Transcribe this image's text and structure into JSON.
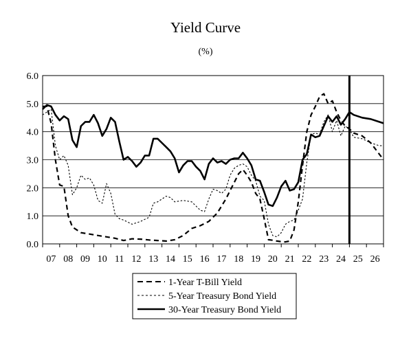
{
  "chart_data": {
    "type": "line",
    "title": "Yield Curve",
    "subtitle": "(%)",
    "xlabel": "",
    "ylabel": "",
    "xlim": [
      2006.75,
      2026.75
    ],
    "ylim": [
      0,
      6
    ],
    "y_ticks": [
      "0.0",
      "1.0",
      "2.0",
      "3.0",
      "4.0",
      "5.0",
      "6.0"
    ],
    "x_ticks": [
      "07",
      "08",
      "09",
      "10",
      "11",
      "12",
      "13",
      "14",
      "15",
      "16",
      "17",
      "18",
      "19",
      "20",
      "21",
      "22",
      "23",
      "24",
      "25",
      "26"
    ],
    "grid": "horizontal",
    "vertical_marker_x": 2024.75,
    "legend_position": "bottom",
    "series": [
      {
        "name": "1-Year T-Bill Yield",
        "style": "dashed",
        "color": "#000000",
        "x": [
          2006.75,
          2007.0,
          2007.25,
          2007.5,
          2007.75,
          2008.0,
          2008.25,
          2008.5,
          2008.75,
          2009.0,
          2009.5,
          2010.0,
          2010.5,
          2011.0,
          2011.5,
          2012.0,
          2012.5,
          2013.0,
          2013.5,
          2014.0,
          2014.5,
          2015.0,
          2015.5,
          2016.0,
          2016.5,
          2017.0,
          2017.5,
          2018.0,
          2018.25,
          2018.5,
          2018.75,
          2019.0,
          2019.25,
          2019.5,
          2019.75,
          2020.0,
          2020.25,
          2020.5,
          2020.75,
          2021.0,
          2021.25,
          2021.5,
          2021.75,
          2022.0,
          2022.25,
          2022.5,
          2022.75,
          2023.0,
          2023.25,
          2023.5,
          2023.75,
          2024.0,
          2024.25,
          2024.5,
          2024.75,
          2025.0,
          2025.5,
          2026.0,
          2026.5,
          2026.75
        ],
        "y": [
          4.9,
          4.9,
          4.3,
          3.0,
          2.1,
          2.05,
          1.0,
          0.6,
          0.5,
          0.4,
          0.35,
          0.3,
          0.25,
          0.2,
          0.12,
          0.18,
          0.17,
          0.14,
          0.12,
          0.1,
          0.15,
          0.3,
          0.55,
          0.65,
          0.8,
          1.1,
          1.6,
          2.2,
          2.5,
          2.65,
          2.45,
          2.2,
          1.8,
          1.6,
          0.9,
          0.15,
          0.13,
          0.1,
          0.08,
          0.07,
          0.1,
          0.5,
          1.5,
          2.8,
          4.0,
          4.6,
          4.9,
          5.25,
          5.35,
          5.0,
          5.1,
          4.7,
          4.4,
          4.2,
          4.1,
          3.95,
          3.85,
          3.6,
          3.2,
          3.0
        ]
      },
      {
        "name": "5-Year Treasury Bond Yield",
        "style": "dotted",
        "color": "#000000",
        "x": [
          2006.75,
          2007.0,
          2007.25,
          2007.5,
          2007.75,
          2008.0,
          2008.25,
          2008.5,
          2008.75,
          2009.0,
          2009.25,
          2009.5,
          2009.75,
          2010.0,
          2010.25,
          2010.5,
          2010.75,
          2011.0,
          2011.25,
          2011.5,
          2012.0,
          2012.5,
          2013.0,
          2013.25,
          2013.5,
          2013.75,
          2014.0,
          2014.25,
          2014.5,
          2015.0,
          2015.5,
          2016.0,
          2016.25,
          2016.5,
          2016.75,
          2017.0,
          2017.25,
          2017.5,
          2017.75,
          2018.0,
          2018.25,
          2018.5,
          2018.75,
          2019.0,
          2019.25,
          2019.5,
          2019.75,
          2020.0,
          2020.25,
          2020.5,
          2020.75,
          2021.0,
          2021.25,
          2021.5,
          2021.75,
          2022.0,
          2022.25,
          2022.5,
          2022.75,
          2023.0,
          2023.25,
          2023.5,
          2023.75,
          2024.0,
          2024.25,
          2024.5,
          2024.75,
          2025.0,
          2025.5,
          2026.0,
          2026.5,
          2026.75
        ],
        "y": [
          4.6,
          4.7,
          4.8,
          3.5,
          3.0,
          3.15,
          2.8,
          1.75,
          2.0,
          2.45,
          2.3,
          2.35,
          2.1,
          1.55,
          1.45,
          2.15,
          1.8,
          1.05,
          0.9,
          0.85,
          0.7,
          0.8,
          0.95,
          1.45,
          1.5,
          1.6,
          1.7,
          1.65,
          1.5,
          1.55,
          1.5,
          1.2,
          1.15,
          1.6,
          1.95,
          1.9,
          1.8,
          1.95,
          2.45,
          2.7,
          2.8,
          2.85,
          2.75,
          2.45,
          2.25,
          1.7,
          1.55,
          0.7,
          0.3,
          0.25,
          0.4,
          0.7,
          0.8,
          0.85,
          1.2,
          1.6,
          2.9,
          3.9,
          3.95,
          3.9,
          4.35,
          4.6,
          4.0,
          4.4,
          3.85,
          4.2,
          4.1,
          3.8,
          3.75,
          3.6,
          3.5,
          3.5
        ]
      },
      {
        "name": "30-Year Treasury Bond Yield",
        "style": "solid",
        "color": "#000000",
        "x": [
          2006.75,
          2007.0,
          2007.25,
          2007.5,
          2007.75,
          2008.0,
          2008.25,
          2008.5,
          2008.75,
          2009.0,
          2009.25,
          2009.5,
          2009.75,
          2010.0,
          2010.25,
          2010.5,
          2010.75,
          2011.0,
          2011.25,
          2011.5,
          2011.75,
          2012.0,
          2012.25,
          2012.5,
          2012.75,
          2013.0,
          2013.25,
          2013.5,
          2013.75,
          2014.0,
          2014.25,
          2014.5,
          2014.75,
          2015.0,
          2015.25,
          2015.5,
          2015.75,
          2016.0,
          2016.25,
          2016.5,
          2016.75,
          2017.0,
          2017.25,
          2017.5,
          2017.75,
          2018.0,
          2018.25,
          2018.5,
          2018.75,
          2019.0,
          2019.25,
          2019.5,
          2019.75,
          2020.0,
          2020.25,
          2020.5,
          2020.75,
          2021.0,
          2021.25,
          2021.5,
          2021.75,
          2022.0,
          2022.25,
          2022.5,
          2022.75,
          2023.0,
          2023.25,
          2023.5,
          2023.75,
          2024.0,
          2024.25,
          2024.5,
          2024.75,
          2025.0,
          2025.5,
          2026.0,
          2026.5,
          2026.75
        ],
        "y": [
          4.8,
          4.95,
          4.9,
          4.6,
          4.4,
          4.55,
          4.45,
          3.7,
          3.45,
          4.2,
          4.35,
          4.35,
          4.6,
          4.3,
          3.85,
          4.1,
          4.5,
          4.35,
          3.65,
          3.0,
          3.1,
          2.95,
          2.75,
          2.9,
          3.15,
          3.15,
          3.75,
          3.75,
          3.6,
          3.45,
          3.3,
          3.05,
          2.55,
          2.8,
          2.95,
          2.95,
          2.75,
          2.6,
          2.3,
          2.85,
          3.05,
          2.9,
          2.95,
          2.85,
          3.0,
          3.05,
          3.05,
          3.25,
          3.05,
          2.8,
          2.3,
          2.25,
          1.85,
          1.4,
          1.35,
          1.65,
          2.05,
          2.25,
          1.9,
          1.95,
          2.2,
          3.0,
          3.2,
          3.9,
          3.8,
          3.85,
          4.2,
          4.55,
          4.35,
          4.55,
          4.25,
          4.45,
          4.7,
          4.6,
          4.5,
          4.45,
          4.35,
          4.3
        ]
      }
    ]
  }
}
